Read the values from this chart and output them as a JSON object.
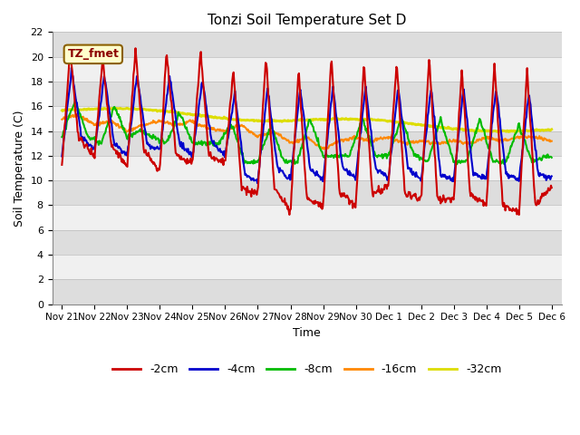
{
  "title": "Tonzi Soil Temperature Set D",
  "xlabel": "Time",
  "ylabel": "Soil Temperature (C)",
  "ylim": [
    0,
    22
  ],
  "yticks": [
    0,
    2,
    4,
    6,
    8,
    10,
    12,
    14,
    16,
    18,
    20,
    22
  ],
  "legend_label": "TZ_fmet",
  "series_labels": [
    "-2cm",
    "-4cm",
    "-8cm",
    "-16cm",
    "-32cm"
  ],
  "series_colors": [
    "#cc0000",
    "#0000cc",
    "#00bb00",
    "#ff8800",
    "#dddd00"
  ],
  "line_widths": [
    1.5,
    1.5,
    1.5,
    1.5,
    2.0
  ],
  "x_labels": [
    "Nov 21",
    "Nov 22",
    "Nov 23",
    "Nov 24",
    "Nov 25",
    "Nov 26",
    "Nov 27",
    "Nov 28",
    "Nov 29",
    "Nov 30",
    "Dec 1",
    "Dec 2",
    "Dec 3",
    "Dec 4",
    "Dec 5",
    "Dec 6"
  ],
  "n_days": 15,
  "n_points": 720,
  "band_light": "#f0f0f0",
  "band_dark": "#dddddd",
  "bg_color": "#ffffff",
  "plot_bg_color": "#ffffff",
  "fig_bg_color": "#ffffff"
}
